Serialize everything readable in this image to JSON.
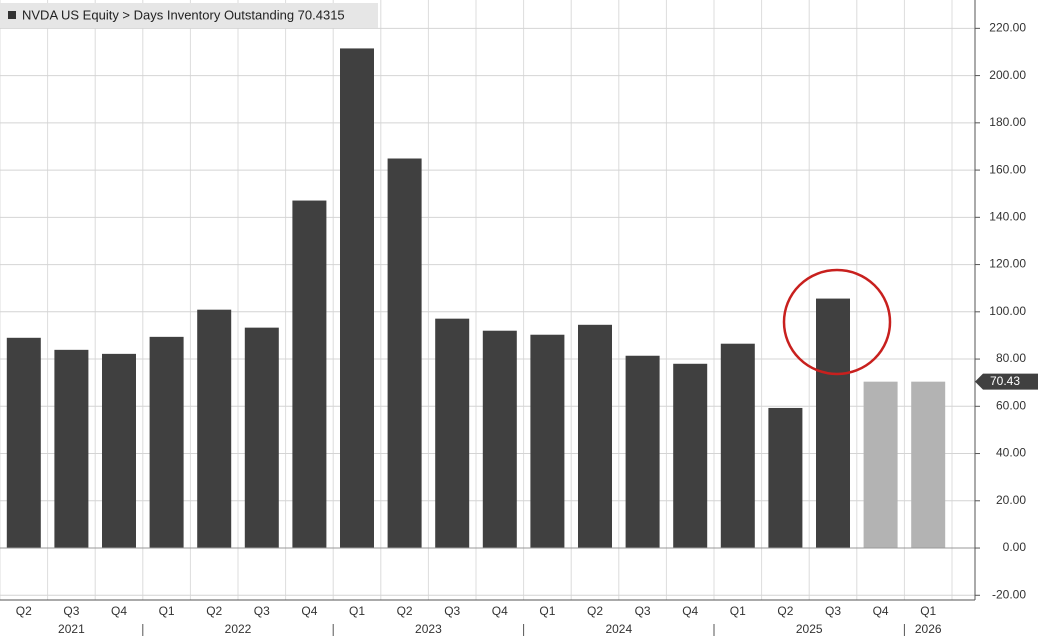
{
  "chart_data": {
    "type": "bar",
    "title": "NVDA US Equity > Days Inventory Outstanding 70.4315",
    "categories": [
      "Q2",
      "Q3",
      "Q4",
      "Q1",
      "Q2",
      "Q3",
      "Q4",
      "Q1",
      "Q2",
      "Q3",
      "Q4",
      "Q1",
      "Q2",
      "Q3",
      "Q4",
      "Q1",
      "Q2",
      "Q3",
      "Q4",
      "Q1"
    ],
    "years": [
      {
        "label": "2021",
        "quarters": 3
      },
      {
        "label": "2022",
        "quarters": 4
      },
      {
        "label": "2023",
        "quarters": 4
      },
      {
        "label": "2024",
        "quarters": 4
      },
      {
        "label": "2025",
        "quarters": 4
      },
      {
        "label": "2026",
        "quarters": 1
      }
    ],
    "values": [
      89.0,
      83.9,
      82.2,
      89.4,
      100.9,
      93.3,
      147.1,
      211.5,
      164.9,
      97.1,
      92.0,
      90.3,
      94.5,
      81.4,
      78.0,
      86.5,
      59.3,
      105.6,
      70.43,
      70.43
    ],
    "colors": [
      "#404040",
      "#404040",
      "#404040",
      "#404040",
      "#404040",
      "#404040",
      "#404040",
      "#404040",
      "#404040",
      "#404040",
      "#404040",
      "#404040",
      "#404040",
      "#404040",
      "#404040",
      "#404040",
      "#404040",
      "#404040",
      "#b3b3b3",
      "#b3b3b3"
    ],
    "last_value_marker": 70.43,
    "ylim": [
      -22,
      232
    ],
    "yticks": [
      {
        "value": -20,
        "label": "-20.00"
      },
      {
        "value": 0,
        "label": "0.00"
      },
      {
        "value": 20,
        "label": "20.00"
      },
      {
        "value": 40,
        "label": "40.00"
      },
      {
        "value": 60,
        "label": "60.00"
      },
      {
        "value": 80,
        "label": "80.00"
      },
      {
        "value": 100,
        "label": "100.00"
      },
      {
        "value": 120,
        "label": "120.00"
      },
      {
        "value": 140,
        "label": "140.00"
      },
      {
        "value": 160,
        "label": "160.00"
      },
      {
        "value": 180,
        "label": "180.00"
      },
      {
        "value": 200,
        "label": "200.00"
      },
      {
        "value": 220,
        "label": "220.00"
      }
    ],
    "grid": true
  }
}
